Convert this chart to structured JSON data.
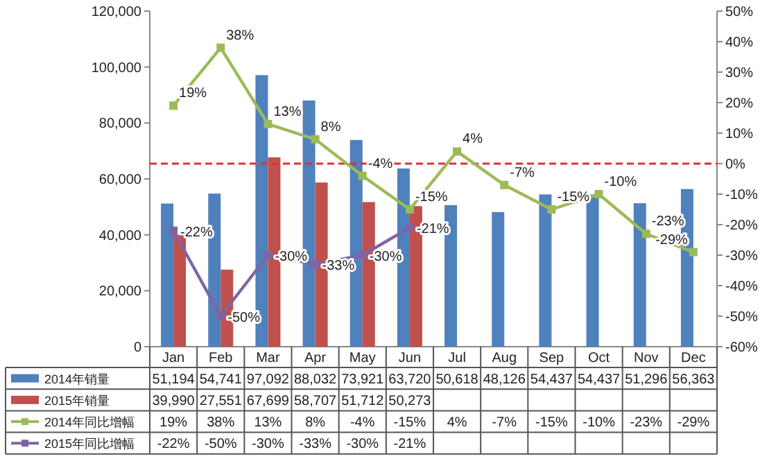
{
  "chart_data": {
    "type": "bar",
    "categories": [
      "Jan",
      "Feb",
      "Mar",
      "Apr",
      "May",
      "Jun",
      "Jul",
      "Aug",
      "Sep",
      "Oct",
      "Nov",
      "Dec"
    ],
    "series": [
      {
        "name": "2014年销量",
        "type": "bar",
        "color": "#4f81bd",
        "values": [
          51194,
          54741,
          97092,
          88032,
          73921,
          63720,
          50618,
          48126,
          54437,
          54437,
          51296,
          56363
        ],
        "value_labels": [
          "51,194",
          "54,741",
          "97,092",
          "88,032",
          "73,921",
          "63,720",
          "50,618",
          "48,126",
          "54,437",
          "54,437",
          "51,296",
          "56,363"
        ]
      },
      {
        "name": "2015年销量",
        "type": "bar",
        "color": "#c0504d",
        "values": [
          39990,
          27551,
          67699,
          58707,
          51712,
          50273,
          null,
          null,
          null,
          null,
          null,
          null
        ],
        "value_labels": [
          "39,990",
          "27,551",
          "67,699",
          "58,707",
          "51,712",
          "50,273",
          null,
          null,
          null,
          null,
          null,
          null
        ]
      },
      {
        "name": "2014年同比增幅",
        "type": "line",
        "axis": "y2",
        "color": "#9bbb59",
        "values": [
          19,
          38,
          13,
          8,
          -4,
          -15,
          4,
          -7,
          -15,
          -10,
          -23,
          -29
        ],
        "value_labels": [
          "19%",
          "38%",
          "13%",
          "8%",
          "-4%",
          "-15%",
          "4%",
          "-7%",
          "-15%",
          "-10%",
          "-23%",
          "-29%"
        ]
      },
      {
        "name": "2015年同比增幅",
        "type": "line",
        "axis": "y2",
        "color": "#8064a2",
        "values": [
          -22,
          -50,
          -30,
          -33,
          -30,
          -21,
          null,
          null,
          null,
          null,
          null,
          null
        ],
        "value_labels": [
          "-22%",
          "-50%",
          "-30%",
          "-33%",
          "-30%",
          "-21%",
          null,
          null,
          null,
          null,
          null,
          null
        ]
      }
    ],
    "ylim": [
      0,
      120000
    ],
    "yticks": [
      0,
      {
        "value": 20000,
        "label": "20,000"
      },
      {
        "value": 40000,
        "label": "40,000"
      },
      {
        "value": 60000,
        "label": "60,000"
      },
      {
        "value": 80000,
        "label": "80,000"
      },
      {
        "value": 100000,
        "label": "100,000"
      },
      {
        "value": 120000,
        "label": "120,000"
      }
    ],
    "y2lim": [
      -60,
      50
    ],
    "y2ticks": [
      {
        "value": -60,
        "label": "-60%"
      },
      {
        "value": -50,
        "label": "-50%"
      },
      {
        "value": -40,
        "label": "-40%"
      },
      {
        "value": -30,
        "label": "-30%"
      },
      {
        "value": -20,
        "label": "-20%"
      },
      {
        "value": -10,
        "label": "-10%"
      },
      {
        "value": 0,
        "label": "0%"
      },
      {
        "value": 10,
        "label": "10%"
      },
      {
        "value": 20,
        "label": "20%"
      },
      {
        "value": 30,
        "label": "30%"
      },
      {
        "value": 40,
        "label": "40%"
      },
      {
        "value": 50,
        "label": "50%"
      }
    ],
    "ref_lines": [
      {
        "axis": "y2",
        "value": 0,
        "color": "#e03030",
        "line_style": "dashed"
      }
    ],
    "marker": "square",
    "legend": "bottom",
    "grid": false
  }
}
